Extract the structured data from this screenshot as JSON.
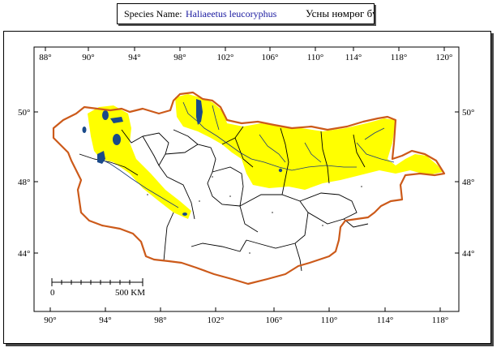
{
  "title": {
    "label": "Species Name:",
    "scientific_name": "Haliaeetus leucoryphus",
    "local_name": "Усны нөмрөг бүргэд"
  },
  "map": {
    "top_longitude_labels": [
      "88°",
      "90°",
      "94°",
      "98°",
      "102°",
      "106°",
      "110°",
      "114°",
      "118°",
      "120°"
    ],
    "bottom_longitude_labels": [
      "90°",
      "94°",
      "98°",
      "102°",
      "106°",
      "110°",
      "114°",
      "118°"
    ],
    "left_latitude_labels": [
      "50°",
      "48°",
      "44°"
    ],
    "right_latitude_labels": [
      "50°",
      "48°",
      "44°"
    ],
    "scale_bar": {
      "start_label": "0",
      "end_label": "500 KM"
    },
    "colors": {
      "border": "#cc5a1a",
      "range": "#ffff00",
      "water": "#1a4a8a",
      "admin_lines": "#000000"
    }
  }
}
